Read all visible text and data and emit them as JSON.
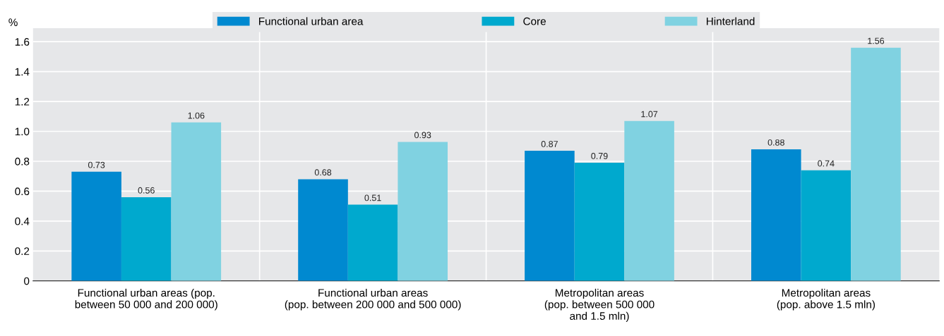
{
  "chart_data": {
    "type": "bar",
    "categories": [
      "Functional urban areas (pop.\nbetween 50 000 and 200 000)",
      "Functional urban areas\n(pop. between 200 000 and 500 000)",
      "Metropolitan areas\n(pop. between 500 000\nand 1.5 mln)",
      "Metropolitan areas\n(pop. above 1.5 mln)"
    ],
    "series": [
      {
        "name": "Functional urban area",
        "color": "#0089d0",
        "values": [
          0.73,
          0.68,
          0.87,
          0.88
        ]
      },
      {
        "name": "Core",
        "color": "#00a9ce",
        "values": [
          0.56,
          0.51,
          0.79,
          0.74
        ]
      },
      {
        "name": "Hinterland",
        "color": "#80d2e1",
        "values": [
          1.06,
          0.93,
          1.07,
          1.56
        ]
      }
    ],
    "ylabel": "%",
    "ylim": [
      0,
      1.69
    ],
    "yticks": [
      0,
      0.2,
      0.4,
      0.6,
      0.8,
      {
        "value": 1,
        "label": "1.0"
      },
      1.2,
      1.4,
      1.6
    ],
    "grid": true,
    "legend": "top",
    "data_labels": true
  }
}
